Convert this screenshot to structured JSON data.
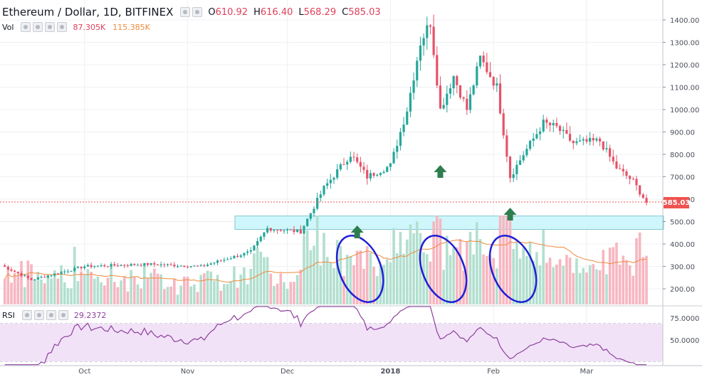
{
  "header": {
    "symbol": "Ethereum / Dollar, 1D, BITFINEX",
    "ohlc": [
      {
        "label": "O",
        "value": "610.92"
      },
      {
        "label": "H",
        "value": "616.40"
      },
      {
        "label": "L",
        "value": "568.29"
      },
      {
        "label": "C",
        "value": "585.03"
      }
    ]
  },
  "volume_legend": {
    "label": "Vol",
    "value": "87.305K",
    "ma_value": "115.385K"
  },
  "rsi_legend": {
    "label": "RSI",
    "value": "29.2372"
  },
  "current_price_label": "585.03",
  "colors": {
    "up": "#26a69a",
    "down": "#e5536a",
    "vol_up": "#b2dfcf",
    "vol_down": "#f7b6c0",
    "vol_ma": "#f08a3a",
    "rsi_line": "#8e3f9e",
    "rsi_band": "#f1e2f7",
    "support_zone": "#cff7fb",
    "annotation_ellipse": "#1f1fd6",
    "annotation_arrow": "#2e7d4f"
  },
  "chart_data": {
    "type": "candlestick",
    "title": "Ethereum / Dollar, 1D, BITFINEX",
    "price_axis": {
      "ticks": [
        "1400.00",
        "1300.00",
        "1200.00",
        "1100.00",
        "1000.00",
        "900.00",
        "800.00",
        "700.00",
        "600.00",
        "500.00",
        "400.00",
        "300.00",
        "200.00"
      ],
      "range": [
        150,
        1450
      ]
    },
    "x_axis": {
      "ticks": [
        "Oct",
        "Nov",
        "Dec",
        "2018",
        "Feb",
        "Mar"
      ],
      "range": [
        "2017-09-06",
        "2018-03-22"
      ]
    },
    "key_prices": [
      {
        "date": "2017-09-06",
        "close": 305
      },
      {
        "date": "2017-09-15",
        "close": 240
      },
      {
        "date": "2017-10-01",
        "close": 300
      },
      {
        "date": "2017-10-20",
        "close": 310
      },
      {
        "date": "2017-11-05",
        "close": 300
      },
      {
        "date": "2017-11-20",
        "close": 365
      },
      {
        "date": "2017-11-25",
        "close": 470
      },
      {
        "date": "2017-12-05",
        "close": 455
      },
      {
        "date": "2017-12-12",
        "close": 650
      },
      {
        "date": "2017-12-20",
        "close": 800
      },
      {
        "date": "2017-12-25",
        "close": 700
      },
      {
        "date": "2018-01-01",
        "close": 750
      },
      {
        "date": "2018-01-06",
        "close": 1000
      },
      {
        "date": "2018-01-10",
        "close": 1300
      },
      {
        "date": "2018-01-13",
        "close": 1390
      },
      {
        "date": "2018-01-16",
        "close": 1000
      },
      {
        "date": "2018-01-20",
        "close": 1150
      },
      {
        "date": "2018-01-24",
        "close": 1000
      },
      {
        "date": "2018-01-28",
        "close": 1230
      },
      {
        "date": "2018-02-02",
        "close": 1100
      },
      {
        "date": "2018-02-06",
        "close": 700
      },
      {
        "date": "2018-02-10",
        "close": 800
      },
      {
        "date": "2018-02-16",
        "close": 940
      },
      {
        "date": "2018-02-20",
        "close": 920
      },
      {
        "date": "2018-02-25",
        "close": 850
      },
      {
        "date": "2018-03-05",
        "close": 860
      },
      {
        "date": "2018-03-10",
        "close": 740
      },
      {
        "date": "2018-03-15",
        "close": 680
      },
      {
        "date": "2018-03-19",
        "close": 585
      }
    ],
    "volume_axis": {
      "ticks": []
    },
    "rsi": {
      "axis_ticks": [
        "75.0000",
        "50.0000"
      ],
      "upper": 70,
      "lower": 30,
      "last": 29.2372
    },
    "annotations": {
      "support_zone": [
        465,
        525
      ],
      "arrows_at": [
        "2017-12-22",
        "2018-01-16",
        "2018-02-06"
      ],
      "ellipses_at": [
        "2017-12-22",
        "2018-01-16",
        "2018-02-06"
      ]
    },
    "grid": true
  }
}
